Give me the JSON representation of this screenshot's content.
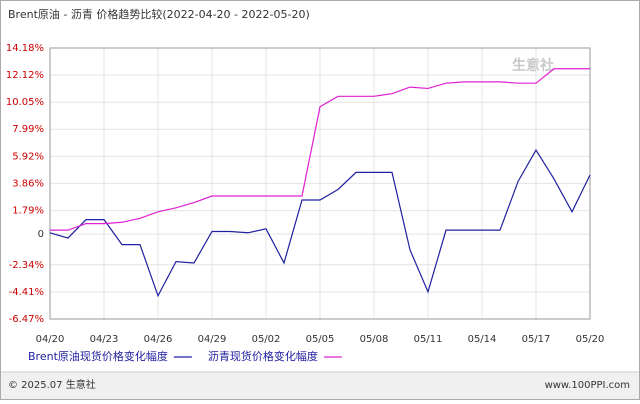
{
  "chart_data": {
    "type": "line",
    "title": "Brent原油 - 沥青 价格趋势比较(2022-04-20 - 2022-05-20)",
    "categories": [
      "04/20",
      null,
      null,
      "04/23",
      null,
      null,
      "04/26",
      null,
      null,
      "04/29",
      null,
      null,
      "05/02",
      null,
      null,
      "05/05",
      null,
      null,
      "05/08",
      null,
      null,
      "05/11",
      null,
      null,
      "05/14",
      null,
      null,
      "05/17",
      null,
      null,
      "05/20"
    ],
    "series": [
      {
        "name": "Brent原油现货价格变化幅度",
        "color": "#2020a0",
        "values": [
          0.1,
          -0.3,
          1.1,
          1.1,
          -0.8,
          -0.8,
          -4.7,
          -2.1,
          -2.2,
          0.2,
          0.2,
          0.1,
          0.4,
          -2.2,
          2.6,
          2.6,
          3.4,
          4.7,
          4.7,
          4.7,
          -1.2,
          -4.4,
          0.3,
          0.3,
          0.3,
          0.3,
          4.0,
          6.4,
          4.2,
          1.7,
          4.5
        ]
      },
      {
        "name": "沥青现货价格变化幅度",
        "color": "#e020d0",
        "values": [
          0.3,
          0.3,
          0.8,
          0.8,
          0.9,
          1.2,
          1.7,
          2.0,
          2.4,
          2.9,
          2.9,
          2.9,
          2.9,
          2.9,
          2.9,
          9.7,
          10.5,
          10.5,
          10.5,
          10.7,
          11.2,
          11.1,
          11.5,
          11.6,
          11.6,
          11.6,
          11.5,
          11.5,
          12.6,
          12.6,
          12.6
        ]
      }
    ],
    "ylim": [
      -6.47,
      14.18
    ],
    "yticks": [
      {
        "value": 14.18,
        "label": "14.18%"
      },
      {
        "value": 12.12,
        "label": "12.12%"
      },
      {
        "value": 10.05,
        "label": "10.05%"
      },
      {
        "value": 7.99,
        "label": "7.99%"
      },
      {
        "value": 5.92,
        "label": "5.92%"
      },
      {
        "value": 3.86,
        "label": "3.86%"
      },
      {
        "value": 1.79,
        "label": "1.79%"
      },
      0,
      {
        "value": -2.34,
        "label": "-2.34%"
      },
      {
        "value": -4.41,
        "label": "-4.41%"
      },
      {
        "value": -6.47,
        "label": "-6.47%"
      }
    ],
    "grid": true,
    "watermark": "生意社",
    "source": "© 2025.07 生意社",
    "website": "www.100PPI.com"
  }
}
